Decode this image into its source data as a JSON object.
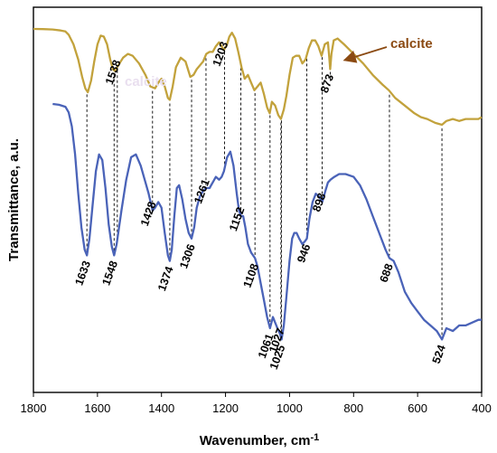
{
  "chart_data": {
    "type": "line",
    "xlabel": "Wavenumber, cm",
    "xlabel_superscript": "-1",
    "ylabel": "Transmittance, a.u.",
    "xlim": [
      1800,
      400
    ],
    "x_reversed": true,
    "x_ticks": [
      1800,
      1600,
      1400,
      1200,
      1000,
      800,
      600,
      400
    ],
    "grid": false,
    "colors": {
      "blue": "#4a63b8",
      "gold": "#c2a23c",
      "calcite": "#8b4a12",
      "label873": "#c0392b"
    },
    "series": [
      {
        "color_key": "gold",
        "points": [
          [
            1800,
            0.0
          ],
          [
            1770,
            0.1
          ],
          [
            1740,
            0.3
          ],
          [
            1715,
            0.8
          ],
          [
            1700,
            1.3
          ],
          [
            1690,
            3
          ],
          [
            1675,
            8
          ],
          [
            1660,
            16
          ],
          [
            1648,
            25
          ],
          [
            1638,
            31
          ],
          [
            1630,
            33
          ],
          [
            1620,
            27
          ],
          [
            1610,
            17
          ],
          [
            1600,
            8
          ],
          [
            1590,
            3.5
          ],
          [
            1580,
            4
          ],
          [
            1570,
            8
          ],
          [
            1560,
            16
          ],
          [
            1552,
            21
          ],
          [
            1545,
            22
          ],
          [
            1535,
            19
          ],
          [
            1520,
            15
          ],
          [
            1505,
            13
          ],
          [
            1490,
            14
          ],
          [
            1470,
            18
          ],
          [
            1450,
            24
          ],
          [
            1435,
            30
          ],
          [
            1420,
            31
          ],
          [
            1410,
            28
          ],
          [
            1400,
            26
          ],
          [
            1390,
            30
          ],
          [
            1380,
            36
          ],
          [
            1374,
            37
          ],
          [
            1365,
            30
          ],
          [
            1355,
            20
          ],
          [
            1340,
            15
          ],
          [
            1325,
            17
          ],
          [
            1310,
            25
          ],
          [
            1300,
            24
          ],
          [
            1290,
            21
          ],
          [
            1280,
            19
          ],
          [
            1270,
            17
          ],
          [
            1260,
            13
          ],
          [
            1250,
            12
          ],
          [
            1240,
            12
          ],
          [
            1230,
            9
          ],
          [
            1220,
            7
          ],
          [
            1212,
            9
          ],
          [
            1205,
            11
          ],
          [
            1195,
            8
          ],
          [
            1188,
            4
          ],
          [
            1180,
            2
          ],
          [
            1170,
            5
          ],
          [
            1160,
            12
          ],
          [
            1150,
            20
          ],
          [
            1140,
            26
          ],
          [
            1130,
            24
          ],
          [
            1120,
            28
          ],
          [
            1110,
            32
          ],
          [
            1100,
            30
          ],
          [
            1090,
            28
          ],
          [
            1080,
            34
          ],
          [
            1070,
            41
          ],
          [
            1062,
            44
          ],
          [
            1055,
            38
          ],
          [
            1045,
            40
          ],
          [
            1035,
            45
          ],
          [
            1027,
            47
          ],
          [
            1018,
            42
          ],
          [
            1010,
            35
          ],
          [
            1000,
            24
          ],
          [
            990,
            15
          ],
          [
            980,
            14
          ],
          [
            970,
            14
          ],
          [
            960,
            18
          ],
          [
            950,
            16
          ],
          [
            940,
            10
          ],
          [
            930,
            6
          ],
          [
            920,
            6
          ],
          [
            910,
            9
          ],
          [
            900,
            14
          ],
          [
            890,
            8
          ],
          [
            880,
            7
          ],
          [
            876,
            15
          ],
          [
            873,
            21
          ],
          [
            869,
            13
          ],
          [
            862,
            6
          ],
          [
            850,
            5
          ],
          [
            830,
            8
          ],
          [
            800,
            13
          ],
          [
            770,
            18
          ],
          [
            740,
            24
          ],
          [
            710,
            29
          ],
          [
            690,
            32
          ],
          [
            670,
            36
          ],
          [
            640,
            40
          ],
          [
            610,
            44
          ],
          [
            590,
            46
          ],
          [
            570,
            47
          ],
          [
            545,
            49
          ],
          [
            524,
            50
          ],
          [
            510,
            48
          ],
          [
            490,
            47
          ],
          [
            470,
            48
          ],
          [
            450,
            47
          ],
          [
            430,
            47
          ],
          [
            410,
            47
          ],
          [
            400,
            46
          ]
        ]
      },
      {
        "color_key": "blue",
        "points": [
          [
            1740,
            0
          ],
          [
            1720,
            0.3
          ],
          [
            1700,
            1
          ],
          [
            1690,
            3
          ],
          [
            1680,
            8
          ],
          [
            1670,
            18
          ],
          [
            1660,
            32
          ],
          [
            1650,
            44
          ],
          [
            1640,
            52
          ],
          [
            1633,
            54
          ],
          [
            1625,
            48
          ],
          [
            1615,
            36
          ],
          [
            1605,
            24
          ],
          [
            1595,
            18
          ],
          [
            1585,
            20
          ],
          [
            1575,
            30
          ],
          [
            1565,
            43
          ],
          [
            1555,
            51
          ],
          [
            1548,
            54
          ],
          [
            1540,
            50
          ],
          [
            1525,
            38
          ],
          [
            1510,
            27
          ],
          [
            1495,
            19
          ],
          [
            1480,
            18
          ],
          [
            1465,
            22
          ],
          [
            1450,
            28
          ],
          [
            1440,
            32
          ],
          [
            1432,
            36
          ],
          [
            1428,
            38
          ],
          [
            1420,
            37
          ],
          [
            1410,
            35
          ],
          [
            1400,
            37
          ],
          [
            1390,
            46
          ],
          [
            1380,
            54
          ],
          [
            1374,
            56
          ],
          [
            1368,
            52
          ],
          [
            1360,
            40
          ],
          [
            1352,
            30
          ],
          [
            1345,
            29
          ],
          [
            1335,
            34
          ],
          [
            1325,
            41
          ],
          [
            1315,
            46
          ],
          [
            1306,
            48
          ],
          [
            1298,
            44
          ],
          [
            1290,
            37
          ],
          [
            1280,
            33
          ],
          [
            1270,
            31
          ],
          [
            1261,
            30
          ],
          [
            1250,
            30
          ],
          [
            1240,
            28
          ],
          [
            1230,
            26
          ],
          [
            1220,
            27
          ],
          [
            1212,
            26
          ],
          [
            1205,
            24
          ],
          [
            1195,
            19
          ],
          [
            1185,
            17
          ],
          [
            1175,
            22
          ],
          [
            1165,
            32
          ],
          [
            1158,
            38
          ],
          [
            1152,
            40
          ],
          [
            1145,
            40
          ],
          [
            1138,
            44
          ],
          [
            1130,
            50
          ],
          [
            1120,
            53
          ],
          [
            1108,
            55
          ],
          [
            1100,
            58
          ],
          [
            1090,
            64
          ],
          [
            1080,
            70
          ],
          [
            1070,
            76
          ],
          [
            1061,
            80
          ],
          [
            1052,
            76
          ],
          [
            1045,
            78
          ],
          [
            1038,
            80
          ],
          [
            1030,
            82
          ],
          [
            1025,
            84
          ],
          [
            1018,
            79
          ],
          [
            1010,
            69
          ],
          [
            1000,
            56
          ],
          [
            992,
            48
          ],
          [
            985,
            46
          ],
          [
            978,
            46
          ],
          [
            970,
            48
          ],
          [
            960,
            50
          ],
          [
            952,
            49
          ],
          [
            946,
            48
          ],
          [
            938,
            41
          ],
          [
            928,
            35
          ],
          [
            918,
            32
          ],
          [
            908,
            33
          ],
          [
            898,
            35
          ],
          [
            888,
            31
          ],
          [
            880,
            28
          ],
          [
            872,
            27
          ],
          [
            860,
            26
          ],
          [
            845,
            25
          ],
          [
            825,
            25
          ],
          [
            800,
            26
          ],
          [
            780,
            29
          ],
          [
            760,
            34
          ],
          [
            740,
            40
          ],
          [
            720,
            46
          ],
          [
            700,
            52
          ],
          [
            688,
            55
          ],
          [
            675,
            56
          ],
          [
            660,
            60
          ],
          [
            640,
            67
          ],
          [
            620,
            71
          ],
          [
            600,
            74
          ],
          [
            580,
            77
          ],
          [
            560,
            79
          ],
          [
            540,
            81
          ],
          [
            524,
            84
          ],
          [
            510,
            80
          ],
          [
            490,
            81
          ],
          [
            470,
            79
          ],
          [
            450,
            79
          ],
          [
            430,
            78
          ],
          [
            410,
            77
          ],
          [
            400,
            77
          ]
        ]
      }
    ],
    "peak_labels_blue": [
      1633,
      1548,
      1374,
      1306,
      1108,
      1061,
      1025,
      946,
      688,
      524
    ],
    "peak_labels_gold": [
      1538,
      1428,
      1261,
      1152,
      1203,
      1027,
      898
    ],
    "peak_label_873": "873",
    "calcite_label": "calcite",
    "calcite_ghost_label": "calcite"
  }
}
